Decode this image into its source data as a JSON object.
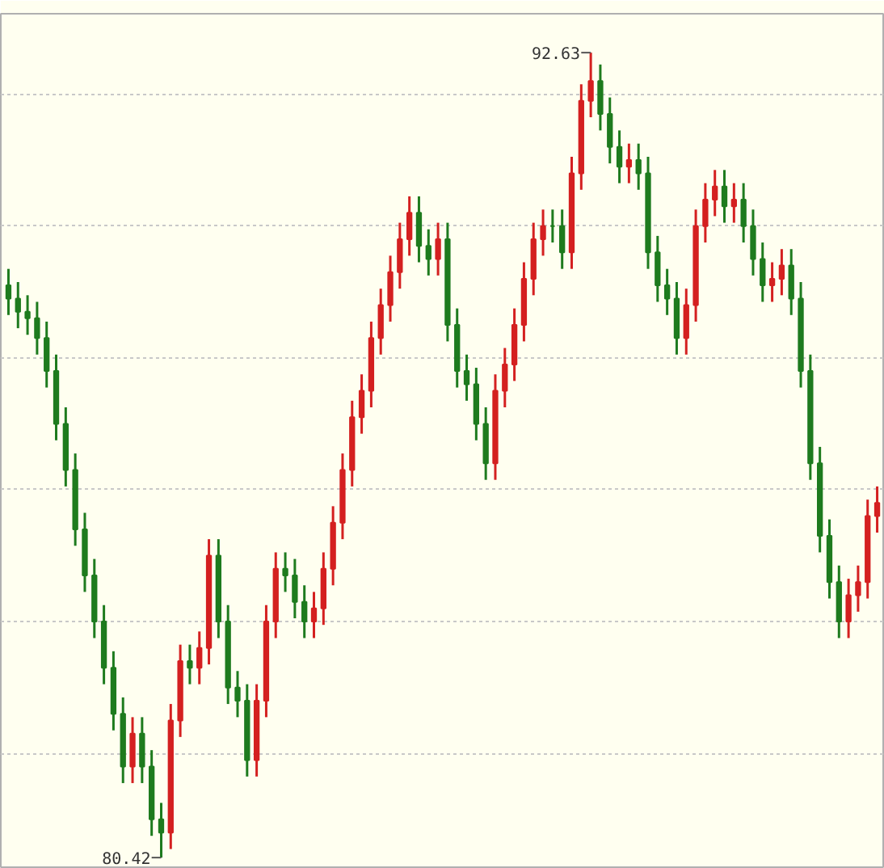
{
  "chart_data": {
    "type": "candlestick",
    "categories": [
      null,
      null,
      null,
      null,
      null,
      null,
      null,
      null,
      null,
      null,
      null,
      null,
      null,
      null,
      null,
      null,
      null,
      null,
      null,
      null,
      null,
      null,
      null,
      null,
      null,
      null,
      null,
      null,
      null,
      null,
      null,
      null,
      null,
      null,
      null,
      null,
      null,
      null,
      null,
      null,
      null,
      null,
      null,
      null,
      null,
      null,
      null,
      null,
      null,
      null,
      null,
      null,
      null,
      null,
      null,
      null,
      null,
      null,
      null,
      null,
      null,
      null,
      null,
      null,
      null,
      null,
      null,
      null,
      null,
      null,
      null,
      null,
      null,
      null,
      null,
      null,
      null,
      null,
      null,
      null,
      null,
      null,
      null,
      null,
      null,
      null,
      null,
      null,
      null,
      null,
      null,
      null
    ],
    "ohlc": [
      [
        89.1,
        89.35,
        88.65,
        88.9
      ],
      [
        88.9,
        89.15,
        88.45,
        88.7
      ],
      [
        88.7,
        88.95,
        88.35,
        88.6
      ],
      [
        88.6,
        88.85,
        88.05,
        88.3
      ],
      [
        88.3,
        88.55,
        87.55,
        87.8
      ],
      [
        87.8,
        88.05,
        86.75,
        87.0
      ],
      [
        87.0,
        87.25,
        86.05,
        86.3
      ],
      [
        86.3,
        86.55,
        85.15,
        85.4
      ],
      [
        85.4,
        85.65,
        84.45,
        84.7
      ],
      [
        84.7,
        84.95,
        83.75,
        84.0
      ],
      [
        84.0,
        84.25,
        83.05,
        83.3
      ],
      [
        83.3,
        83.55,
        82.35,
        82.6
      ],
      [
        82.6,
        82.85,
        81.55,
        81.8
      ],
      [
        81.8,
        82.55,
        81.55,
        82.3
      ],
      [
        82.3,
        82.55,
        81.55,
        81.8
      ],
      [
        81.8,
        82.05,
        80.75,
        81.0
      ],
      [
        81.0,
        81.25,
        80.42,
        80.8
      ],
      [
        80.8,
        82.75,
        80.55,
        82.5
      ],
      [
        82.5,
        83.65,
        82.25,
        83.4
      ],
      [
        83.4,
        83.65,
        83.05,
        83.3
      ],
      [
        83.3,
        83.85,
        83.05,
        83.6
      ],
      [
        83.6,
        85.25,
        83.35,
        85.0
      ],
      [
        85.0,
        85.25,
        83.75,
        84.0
      ],
      [
        84.0,
        84.25,
        82.75,
        83.0
      ],
      [
        83.0,
        83.25,
        82.55,
        82.8
      ],
      [
        82.8,
        83.05,
        81.65,
        81.9
      ],
      [
        81.9,
        83.05,
        81.65,
        82.8
      ],
      [
        82.8,
        84.25,
        82.55,
        84.0
      ],
      [
        84.0,
        85.05,
        83.75,
        84.8
      ],
      [
        84.8,
        85.05,
        84.45,
        84.7
      ],
      [
        84.7,
        84.95,
        84.05,
        84.3
      ],
      [
        84.3,
        84.55,
        83.75,
        84.0
      ],
      [
        84.0,
        84.45,
        83.75,
        84.2
      ],
      [
        84.2,
        85.05,
        83.95,
        84.8
      ],
      [
        84.8,
        85.75,
        84.55,
        85.5
      ],
      [
        85.5,
        86.55,
        85.25,
        86.3
      ],
      [
        86.3,
        87.35,
        86.05,
        87.1
      ],
      [
        87.1,
        87.75,
        86.85,
        87.5
      ],
      [
        87.5,
        88.55,
        87.25,
        88.3
      ],
      [
        88.3,
        89.05,
        88.05,
        88.8
      ],
      [
        88.8,
        89.55,
        88.55,
        89.3
      ],
      [
        89.3,
        90.05,
        89.05,
        89.8
      ],
      [
        89.8,
        90.45,
        89.55,
        90.2
      ],
      [
        90.2,
        90.45,
        89.45,
        89.7
      ],
      [
        89.7,
        89.95,
        89.25,
        89.5
      ],
      [
        89.5,
        90.05,
        89.25,
        89.8
      ],
      [
        89.8,
        90.05,
        88.25,
        88.5
      ],
      [
        88.5,
        88.75,
        87.55,
        87.8
      ],
      [
        87.8,
        88.05,
        87.35,
        87.6
      ],
      [
        87.6,
        87.85,
        86.75,
        87.0
      ],
      [
        87.0,
        87.25,
        86.15,
        86.4
      ],
      [
        86.4,
        87.75,
        86.15,
        87.5
      ],
      [
        87.5,
        88.15,
        87.25,
        87.9
      ],
      [
        87.9,
        88.75,
        87.65,
        88.5
      ],
      [
        88.5,
        89.45,
        88.25,
        89.2
      ],
      [
        89.2,
        90.05,
        88.95,
        89.8
      ],
      [
        89.8,
        90.25,
        89.55,
        90.0
      ],
      [
        90.0,
        90.25,
        89.75,
        90.0
      ],
      [
        90.0,
        90.25,
        89.35,
        89.6
      ],
      [
        89.6,
        91.05,
        89.35,
        90.8
      ],
      [
        90.8,
        92.15,
        90.55,
        91.9
      ],
      [
        91.9,
        92.63,
        91.65,
        92.2
      ],
      [
        92.2,
        92.45,
        91.45,
        91.7
      ],
      [
        91.7,
        91.95,
        90.95,
        91.2
      ],
      [
        91.2,
        91.45,
        90.65,
        90.9
      ],
      [
        90.9,
        91.25,
        90.65,
        91.0
      ],
      [
        91.0,
        91.25,
        90.55,
        90.8
      ],
      [
        90.8,
        91.05,
        89.35,
        89.6
      ],
      [
        89.6,
        89.85,
        88.85,
        89.1
      ],
      [
        89.1,
        89.35,
        88.65,
        88.9
      ],
      [
        88.9,
        89.15,
        88.05,
        88.3
      ],
      [
        88.3,
        89.05,
        88.05,
        88.8
      ],
      [
        88.8,
        90.25,
        88.55,
        90.0
      ],
      [
        90.0,
        90.65,
        89.75,
        90.4
      ],
      [
        90.4,
        90.85,
        90.15,
        90.6
      ],
      [
        90.6,
        90.85,
        90.05,
        90.3
      ],
      [
        90.3,
        90.65,
        90.05,
        90.4
      ],
      [
        90.4,
        90.65,
        89.75,
        90.0
      ],
      [
        90.0,
        90.25,
        89.25,
        89.5
      ],
      [
        89.5,
        89.75,
        88.85,
        89.1
      ],
      [
        89.1,
        89.45,
        88.85,
        89.2
      ],
      [
        89.2,
        89.65,
        88.95,
        89.4
      ],
      [
        89.4,
        89.65,
        88.65,
        88.9
      ],
      [
        88.9,
        89.15,
        87.55,
        87.8
      ],
      [
        87.8,
        88.05,
        86.15,
        86.4
      ],
      [
        86.4,
        86.65,
        85.05,
        85.3
      ],
      [
        85.3,
        85.55,
        84.35,
        84.6
      ],
      [
        84.6,
        84.85,
        83.75,
        84.0
      ],
      [
        84.0,
        84.65,
        83.75,
        84.4
      ],
      [
        84.4,
        84.85,
        84.15,
        84.6
      ],
      [
        84.6,
        85.85,
        84.35,
        85.6
      ],
      [
        85.6,
        86.05,
        85.35,
        85.8
      ]
    ],
    "colors": [
      "#1e7b1e",
      "#1e7b1e",
      "#1e7b1e",
      "#1e7b1e",
      "#1e7b1e",
      "#1e7b1e",
      "#1e7b1e",
      "#1e7b1e",
      "#1e7b1e",
      "#1e7b1e",
      "#1e7b1e",
      "#1e7b1e",
      "#1e7b1e",
      "#d42020",
      "#1e7b1e",
      "#1e7b1e",
      "#1e7b1e",
      "#d42020",
      "#d42020",
      "#1e7b1e",
      "#d42020",
      "#d42020",
      "#1e7b1e",
      "#1e7b1e",
      "#1e7b1e",
      "#1e7b1e",
      "#d42020",
      "#d42020",
      "#d42020",
      "#1e7b1e",
      "#1e7b1e",
      "#1e7b1e",
      "#d42020",
      "#d42020",
      "#d42020",
      "#d42020",
      "#d42020",
      "#d42020",
      "#d42020",
      "#d42020",
      "#d42020",
      "#d42020",
      "#d42020",
      "#1e7b1e",
      "#1e7b1e",
      "#d42020",
      "#1e7b1e",
      "#1e7b1e",
      "#1e7b1e",
      "#1e7b1e",
      "#1e7b1e",
      "#d42020",
      "#d42020",
      "#d42020",
      "#d42020",
      "#d42020",
      "#d42020",
      "#1e7b1e",
      "#1e7b1e",
      "#d42020",
      "#d42020",
      "#d42020",
      "#1e7b1e",
      "#1e7b1e",
      "#1e7b1e",
      "#d42020",
      "#1e7b1e",
      "#1e7b1e",
      "#1e7b1e",
      "#1e7b1e",
      "#1e7b1e",
      "#d42020",
      "#d42020",
      "#d42020",
      "#d42020",
      "#1e7b1e",
      "#d42020",
      "#1e7b1e",
      "#1e7b1e",
      "#1e7b1e",
      "#d42020",
      "#d42020",
      "#1e7b1e",
      "#1e7b1e",
      "#1e7b1e",
      "#1e7b1e",
      "#1e7b1e",
      "#1e7b1e",
      "#d42020",
      "#d42020",
      "#d42020",
      "#d42020"
    ],
    "ylim": [
      80.25,
      93.22
    ],
    "yticks": [
      {
        "value": 82,
        "label": null
      },
      {
        "value": 84,
        "label": null
      },
      {
        "value": 86,
        "label": null
      },
      {
        "value": 88,
        "label": null
      },
      {
        "value": 90,
        "label": null
      },
      {
        "value": 92,
        "label": null
      }
    ],
    "grid": "y",
    "tick_labels": false,
    "annotations": [
      "92.63",
      "80.42"
    ]
  }
}
